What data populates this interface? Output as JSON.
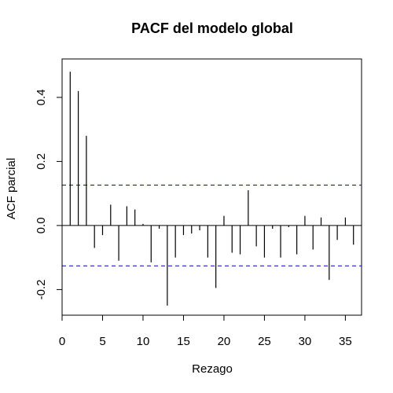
{
  "chart_data": {
    "type": "bar",
    "title": "PACF del modelo global",
    "xlabel": "Rezago",
    "ylabel": "ACF parcial",
    "xlim": [
      0,
      37
    ],
    "ylim": [
      -0.28,
      0.52
    ],
    "x_ticks": [
      0,
      5,
      10,
      15,
      20,
      25,
      30,
      35
    ],
    "y_ticks": [
      -0.2,
      0.0,
      0.2,
      0.4
    ],
    "y_tick_labels": [
      "-0.2",
      "0.0",
      "0.2",
      "0.4"
    ],
    "confidence_bounds": [
      0.126,
      -0.126
    ],
    "lags": [
      1,
      2,
      3,
      4,
      5,
      6,
      7,
      8,
      9,
      10,
      11,
      12,
      13,
      14,
      15,
      16,
      17,
      18,
      19,
      20,
      21,
      22,
      23,
      24,
      25,
      26,
      27,
      28,
      29,
      30,
      31,
      32,
      33,
      34,
      35,
      36
    ],
    "values": [
      0.48,
      0.42,
      0.28,
      -0.07,
      -0.03,
      0.065,
      -0.11,
      0.06,
      0.05,
      0.005,
      -0.115,
      -0.01,
      -0.25,
      -0.1,
      -0.03,
      -0.025,
      -0.015,
      -0.1,
      -0.195,
      0.03,
      -0.085,
      -0.09,
      0.11,
      -0.065,
      -0.1,
      -0.01,
      -0.1,
      -0.005,
      -0.09,
      0.03,
      -0.075,
      0.025,
      -0.17,
      -0.045,
      0.025,
      -0.06
    ],
    "grid": false,
    "colors": {
      "bars": "#000000",
      "bounds": "#0000cc",
      "axes": "#000000"
    }
  }
}
